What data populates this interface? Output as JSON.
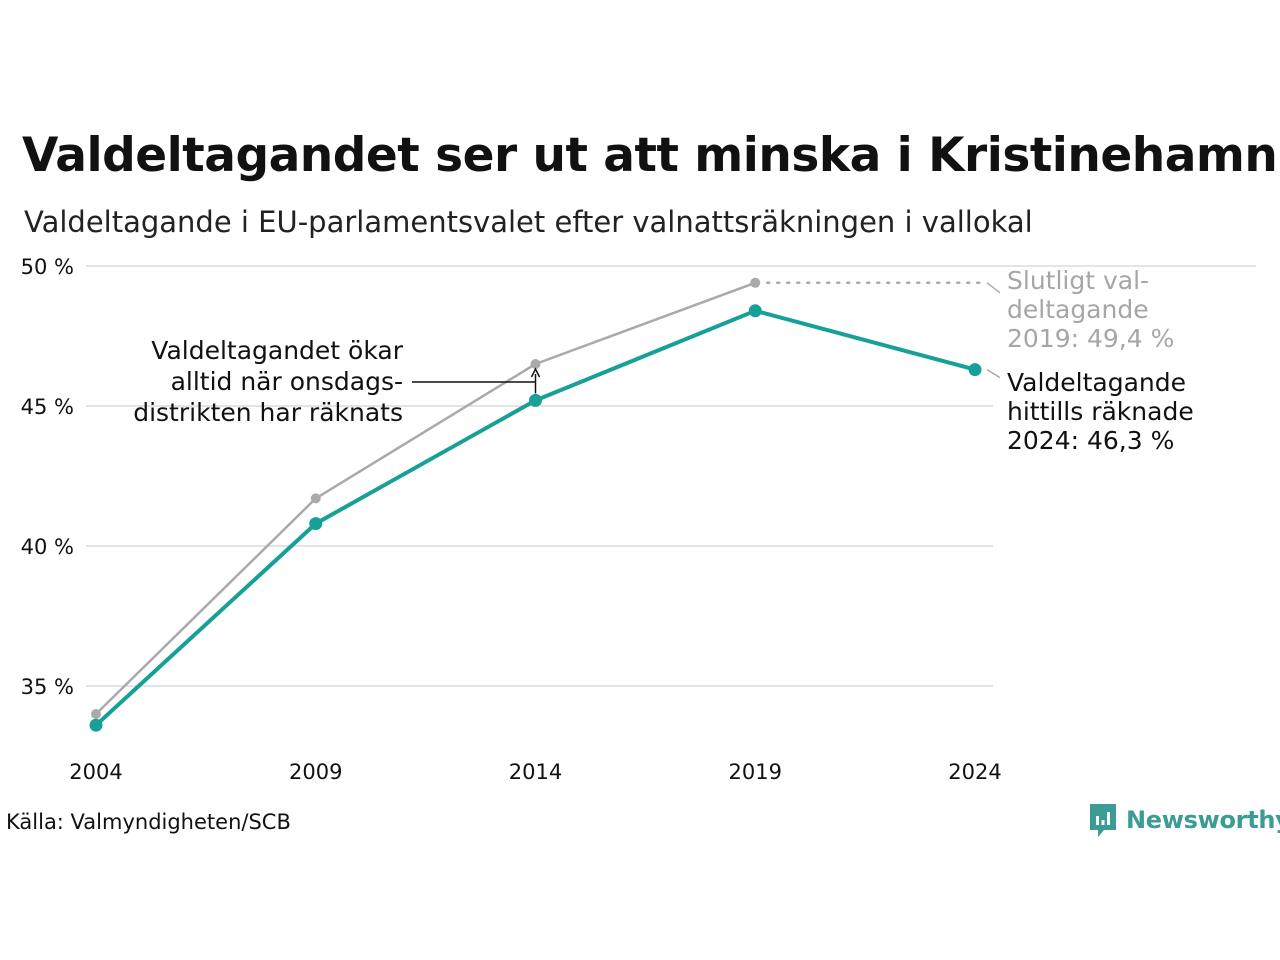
{
  "title": "Valdeltagandet ser ut att minska i Kristinehamn",
  "subtitle": "Valdeltagande i EU-parlamentsvalet efter valnattsräkningen i vallokal",
  "source": "Källa: Valmyndigheten/SCB",
  "brand": "Newsworthy",
  "colors": {
    "counted": "#16a097",
    "final": "#aaaaaa",
    "grid": "#e4e4e4",
    "text": "#111111",
    "muted": "#a6a6a6"
  },
  "chart_data": {
    "type": "line",
    "x": [
      "2004",
      "2009",
      "2014",
      "2019",
      "2024"
    ],
    "ylim": [
      33,
      50
    ],
    "y_ticks": [
      35,
      40,
      45,
      50
    ],
    "y_tick_labels": [
      "35 %",
      "40 %",
      "45 %",
      "50 %"
    ],
    "grid": true,
    "series": [
      {
        "key": "final",
        "values": [
          34.0,
          41.7,
          46.5,
          49.4,
          null
        ]
      },
      {
        "key": "counted",
        "values": [
          33.6,
          40.8,
          45.2,
          48.4,
          46.3
        ]
      }
    ],
    "annotations": {
      "final_2019": [
        "Slutligt val-",
        "deltagande",
        "2019: 49,4 %"
      ],
      "counted_2024": [
        "Valdeltagande",
        "hittills räknade",
        "2024: 46,3 %"
      ],
      "wednesday": [
        "Valdeltagandet ökar",
        "alltid när onsdags-",
        "distrikten har räknats"
      ]
    }
  }
}
